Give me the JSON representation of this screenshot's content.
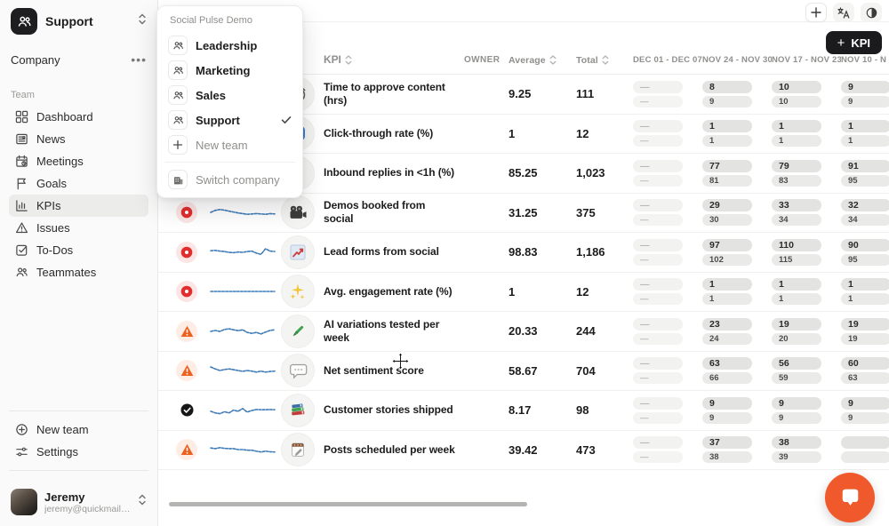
{
  "sidebar": {
    "team_switcher": {
      "name": "Support"
    },
    "company_label": "Company",
    "team_section_label": "Team",
    "nav": [
      {
        "label": "Dashboard",
        "icon": "dashboard",
        "active": false
      },
      {
        "label": "News",
        "icon": "news",
        "active": false
      },
      {
        "label": "Meetings",
        "icon": "meetings",
        "active": false
      },
      {
        "label": "Goals",
        "icon": "goals",
        "active": false
      },
      {
        "label": "KPIs",
        "icon": "kpis",
        "active": true
      },
      {
        "label": "Issues",
        "icon": "issues",
        "active": false
      },
      {
        "label": "To-Dos",
        "icon": "todos",
        "active": false
      },
      {
        "label": "Teammates",
        "icon": "teammates",
        "active": false
      }
    ],
    "footer_nav": [
      {
        "label": "New team",
        "icon": "plus-circle"
      },
      {
        "label": "Settings",
        "icon": "settings"
      }
    ],
    "user": {
      "name": "Jeremy",
      "email": "jeremy@quickmail.io"
    }
  },
  "team_menu": {
    "header": "Social Pulse Demo",
    "items": [
      {
        "label": "Leadership",
        "icon": "team",
        "selected": false,
        "muted": false
      },
      {
        "label": "Marketing",
        "icon": "team",
        "selected": false,
        "muted": false
      },
      {
        "label": "Sales",
        "icon": "team",
        "selected": false,
        "muted": false
      },
      {
        "label": "Support",
        "icon": "team",
        "selected": true,
        "muted": false
      },
      {
        "label": "New team",
        "icon": "plus",
        "selected": false,
        "muted": true
      }
    ],
    "footer_item": {
      "label": "Switch company",
      "icon": "building",
      "muted": true
    }
  },
  "toolbar": {
    "kpi_button_label": "KPI",
    "kpi_button_plus": "+"
  },
  "topbar_icons": [
    "add-icon",
    "translate-icon",
    "contrast-icon"
  ],
  "table": {
    "headers": {
      "kpi": "KPI",
      "owner": "OWNER",
      "average": "Average",
      "total": "Total"
    },
    "week_columns": [
      "DEC 01 - DEC 07",
      "NOV 24 - NOV 30",
      "NOV 17 - NOV 23",
      "NOV 10 - N"
    ],
    "rows": [
      {
        "status": null,
        "icon": "stopwatch",
        "name": "Time to approve content (hrs)",
        "avatar_color": "#4a8fe0",
        "avatar_variant": "solid",
        "average": "9.25",
        "total": "111",
        "weeks": [
          [
            "—",
            "—"
          ],
          [
            "8",
            "9"
          ],
          [
            "10",
            "10"
          ],
          [
            "9",
            "9"
          ]
        ],
        "spark": null
      },
      {
        "status": null,
        "icon": "arrow-forward",
        "name": "Click-through rate (%)",
        "avatar_color": "#5a49d8",
        "avatar_variant": "dense",
        "average": "1",
        "total": "12",
        "weeks": [
          [
            "—",
            "—"
          ],
          [
            "1",
            "1"
          ],
          [
            "1",
            "1"
          ],
          [
            "1",
            "1"
          ]
        ],
        "spark": null
      },
      {
        "status": "red",
        "icon": "lightning",
        "name": "Inbound replies in <1h (%)",
        "avatar_color": "#a88fc9",
        "avatar_variant": "dots",
        "average": "85.25",
        "total": "1,023",
        "weeks": [
          [
            "—",
            "—"
          ],
          [
            "77",
            "81"
          ],
          [
            "79",
            "83"
          ],
          [
            "91",
            "95"
          ]
        ],
        "spark": [
          0.5,
          0.58,
          0.45,
          0.3,
          0.5,
          0.55,
          0.42,
          0.55,
          0.6,
          0.5,
          0.55,
          0.62,
          0.52,
          0.48,
          0.55
        ]
      },
      {
        "status": "red",
        "icon": "movie-camera",
        "name": "Demos booked from social",
        "avatar_color": "#7cc46c",
        "avatar_variant": "dots",
        "average": "31.25",
        "total": "375",
        "weeks": [
          [
            "—",
            "—"
          ],
          [
            "29",
            "30"
          ],
          [
            "33",
            "34"
          ],
          [
            "32",
            "34"
          ]
        ],
        "spark": [
          0.5,
          0.62,
          0.68,
          0.64,
          0.58,
          0.52,
          0.46,
          0.42,
          0.38,
          0.4,
          0.42,
          0.4,
          0.38,
          0.42,
          0.4
        ]
      },
      {
        "status": "red",
        "icon": "chart-up",
        "name": "Lead forms from social",
        "avatar_color": "#e05a5a",
        "avatar_variant": "dots",
        "average": "98.83",
        "total": "1,186",
        "weeks": [
          [
            "—",
            "—"
          ],
          [
            "97",
            "102"
          ],
          [
            "110",
            "115"
          ],
          [
            "90",
            "95"
          ]
        ],
        "spark": [
          0.6,
          0.62,
          0.58,
          0.55,
          0.5,
          0.48,
          0.52,
          0.5,
          0.55,
          0.58,
          0.45,
          0.38,
          0.72,
          0.58,
          0.55
        ]
      },
      {
        "status": "red",
        "icon": "sparkles",
        "name": "Avg. engagement rate (%)",
        "avatar_color": "#7cc46c",
        "avatar_variant": "dots",
        "average": "1",
        "total": "12",
        "weeks": [
          [
            "—",
            "—"
          ],
          [
            "1",
            "1"
          ],
          [
            "1",
            "1"
          ],
          [
            "1",
            "1"
          ]
        ],
        "spark": [
          0.5,
          0.5,
          0.5,
          0.5,
          0.5,
          0.5,
          0.5,
          0.5,
          0.5,
          0.5,
          0.5,
          0.5,
          0.5,
          0.5,
          0.5
        ]
      },
      {
        "status": "warn",
        "icon": "pen",
        "name": "AI variations tested per week",
        "avatar_color": "#e8808f",
        "avatar_variant": "dots",
        "average": "20.33",
        "total": "244",
        "weeks": [
          [
            "—",
            "—"
          ],
          [
            "23",
            "24"
          ],
          [
            "19",
            "20"
          ],
          [
            "19",
            "19"
          ]
        ],
        "spark": [
          0.5,
          0.56,
          0.5,
          0.62,
          0.66,
          0.6,
          0.55,
          0.6,
          0.44,
          0.38,
          0.44,
          0.34,
          0.46,
          0.56,
          0.6
        ]
      },
      {
        "status": "warn",
        "icon": "speech-bubble",
        "name": "Net sentiment score",
        "avatar_color": "#7b3042",
        "avatar_variant": "dense",
        "average": "58.67",
        "total": "704",
        "weeks": [
          [
            "—",
            "—"
          ],
          [
            "63",
            "66"
          ],
          [
            "56",
            "59"
          ],
          [
            "60",
            "63"
          ]
        ],
        "spark": [
          0.72,
          0.6,
          0.5,
          0.56,
          0.6,
          0.55,
          0.5,
          0.45,
          0.5,
          0.46,
          0.4,
          0.46,
          0.4,
          0.44,
          0.46
        ]
      },
      {
        "status": "ok",
        "icon": "books",
        "name": "Customer stories shipped",
        "avatar_color": "#3f9e62",
        "avatar_variant": "solid",
        "average": "8.17",
        "total": "98",
        "weeks": [
          [
            "—",
            "—"
          ],
          [
            "9",
            "9"
          ],
          [
            "9",
            "9"
          ],
          [
            "9",
            "9"
          ]
        ],
        "spark": [
          0.45,
          0.35,
          0.3,
          0.42,
          0.35,
          0.52,
          0.45,
          0.62,
          0.4,
          0.5,
          0.56,
          0.55,
          0.55,
          0.56,
          0.55
        ]
      },
      {
        "status": "warn",
        "icon": "notepad",
        "name": "Posts scheduled per week",
        "avatar_color": "#a63a2e",
        "avatar_variant": "dense",
        "average": "39.42",
        "total": "473",
        "weeks": [
          [
            "—",
            "—"
          ],
          [
            "37",
            "38"
          ],
          [
            "38",
            "39"
          ],
          [
            "",
            ""
          ]
        ],
        "spark": [
          0.6,
          0.56,
          0.62,
          0.58,
          0.56,
          0.56,
          0.5,
          0.5,
          0.46,
          0.46,
          0.4,
          0.35,
          0.4,
          0.36,
          0.35
        ]
      }
    ]
  },
  "sparkline_color": "#3d7ab8",
  "chat": {
    "color": "#f0592b"
  }
}
